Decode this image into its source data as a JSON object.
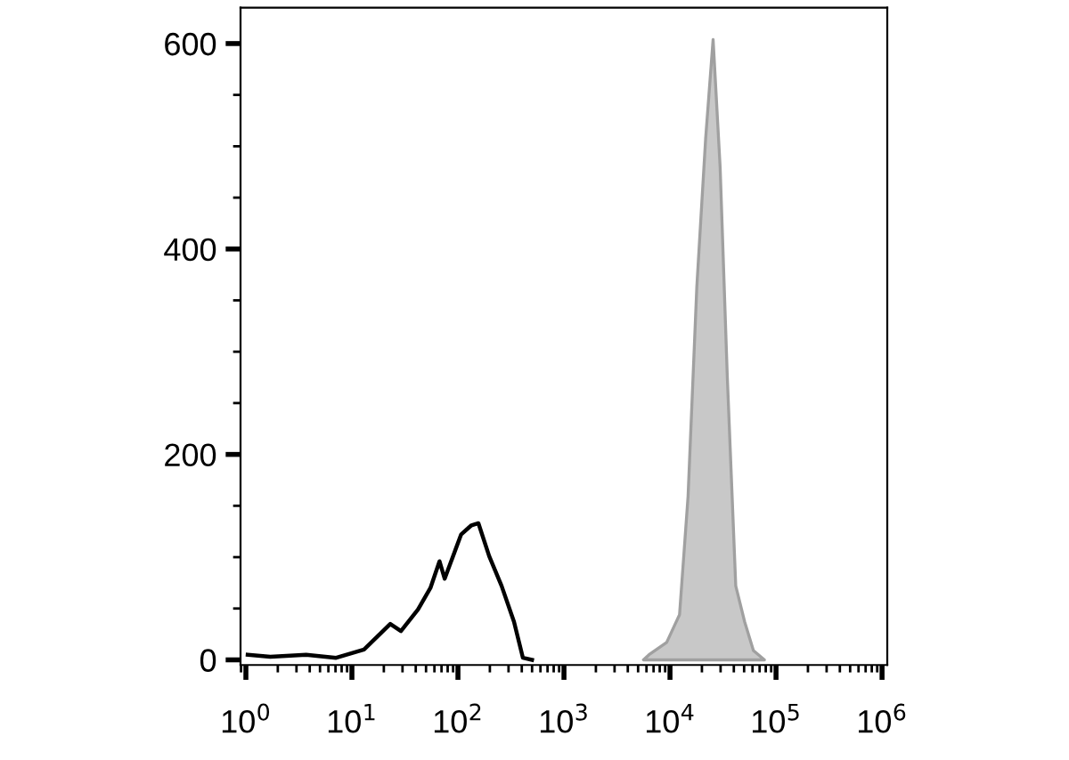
{
  "chart_data": {
    "type": "line",
    "log": "x",
    "grid": false,
    "legend": false,
    "xlim": [
      0.89,
      1120000
    ],
    "ylim": [
      -5,
      635
    ],
    "xticks": [
      {
        "value": 1,
        "label": "10$^{0}$"
      },
      {
        "value": 10,
        "label": "10$^{1}$"
      },
      {
        "value": 100,
        "label": "10$^{2}$"
      },
      {
        "value": 1000,
        "label": "10$^{3}$"
      },
      {
        "value": 10000,
        "label": "10$^{4}$"
      },
      {
        "value": 100000,
        "label": "10$^{5}$"
      },
      {
        "value": 1000000,
        "label": "10$^{6}$"
      }
    ],
    "yticks": [
      0,
      200,
      400,
      600
    ],
    "series": [
      {
        "type": "area",
        "color": "#c8c8c8",
        "x": [
          5620,
          6340,
          9300,
          12300,
          14800,
          17900,
          21700,
          25500,
          29700,
          34700,
          41700,
          50600,
          61200,
          77800
        ],
        "values": [
          0,
          5,
          17,
          44,
          159,
          363,
          508,
          604,
          480,
          276,
          72,
          37,
          9,
          0
        ]
      },
      {
        "color": "#000000",
        "x": [
          1.04,
          1.7,
          3.7,
          7.1,
          13,
          23,
          29,
          42,
          55,
          67,
          75,
          107,
          134,
          156,
          197,
          258,
          338,
          410,
          500
        ],
        "values": [
          5,
          3,
          5,
          2,
          10,
          35,
          28,
          49,
          70,
          96,
          79,
          122,
          131,
          133,
          101,
          72,
          37,
          2,
          0
        ]
      }
    ]
  }
}
